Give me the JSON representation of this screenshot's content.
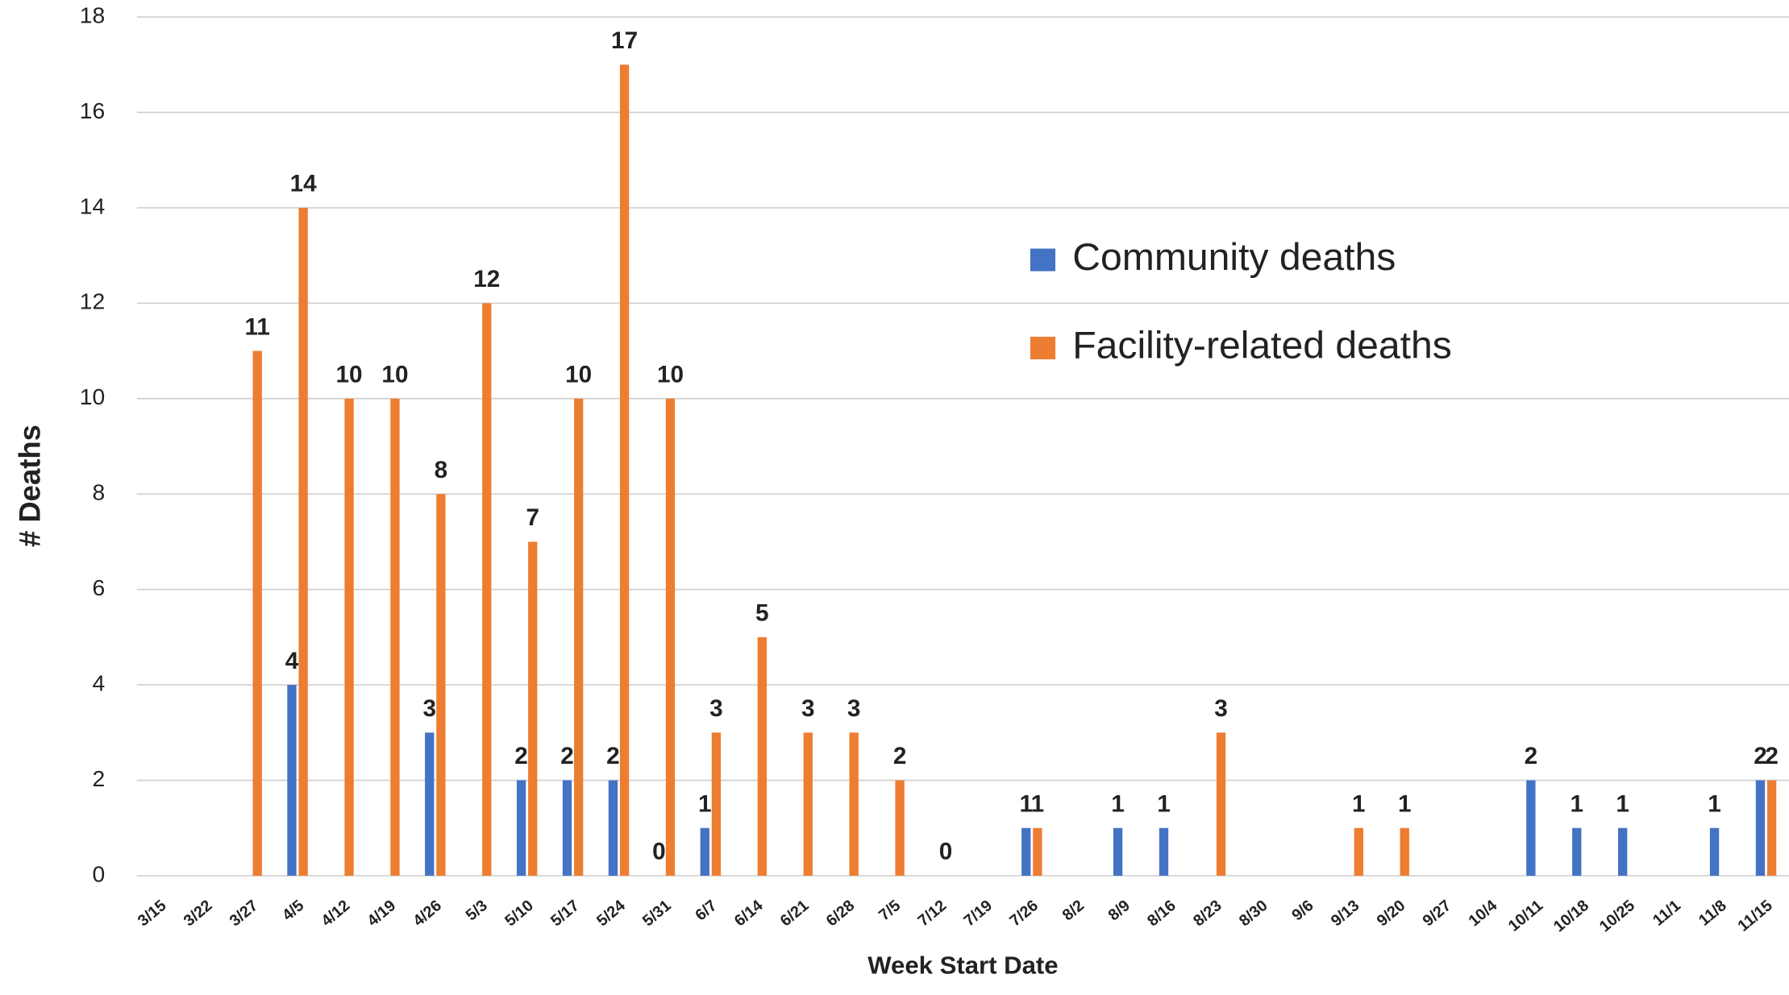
{
  "chart_data": {
    "type": "bar",
    "x_label": "Week Start Date",
    "y_label": "# Deaths",
    "categories": [
      "3/15",
      "3/22",
      "3/27",
      "4/5",
      "4/12",
      "4/19",
      "4/26",
      "5/3",
      "5/10",
      "5/17",
      "5/24",
      "5/31",
      "6/7",
      "6/14",
      "6/21",
      "6/28",
      "7/5",
      "7/12",
      "7/19",
      "7/26",
      "8/2",
      "8/9",
      "8/16",
      "8/23",
      "8/30",
      "9/6",
      "9/13",
      "9/20",
      "9/27",
      "10/4",
      "10/11",
      "10/18",
      "10/25",
      "11/1",
      "11/8",
      "11/15"
    ],
    "series": [
      {
        "name": "Community deaths",
        "color": "#4472c4",
        "values": [
          null,
          null,
          null,
          4,
          null,
          null,
          3,
          null,
          2,
          2,
          2,
          0,
          1,
          null,
          null,
          null,
          null,
          null,
          null,
          1,
          null,
          1,
          1,
          null,
          null,
          null,
          null,
          null,
          null,
          null,
          2,
          1,
          1,
          null,
          1,
          2
        ]
      },
      {
        "name": "Facility-related deaths",
        "color": "#ed7d31",
        "values": [
          null,
          null,
          11,
          14,
          10,
          10,
          8,
          12,
          7,
          10,
          17,
          10,
          3,
          5,
          3,
          3,
          2,
          0,
          null,
          1,
          null,
          null,
          null,
          3,
          null,
          null,
          1,
          1,
          null,
          null,
          null,
          null,
          null,
          null,
          null,
          2
        ]
      }
    ],
    "ylim": [
      0,
      18
    ],
    "yticks": [
      0,
      2,
      4,
      6,
      8,
      10,
      12,
      14,
      16,
      18
    ],
    "grid": true,
    "legend": "upper right"
  }
}
